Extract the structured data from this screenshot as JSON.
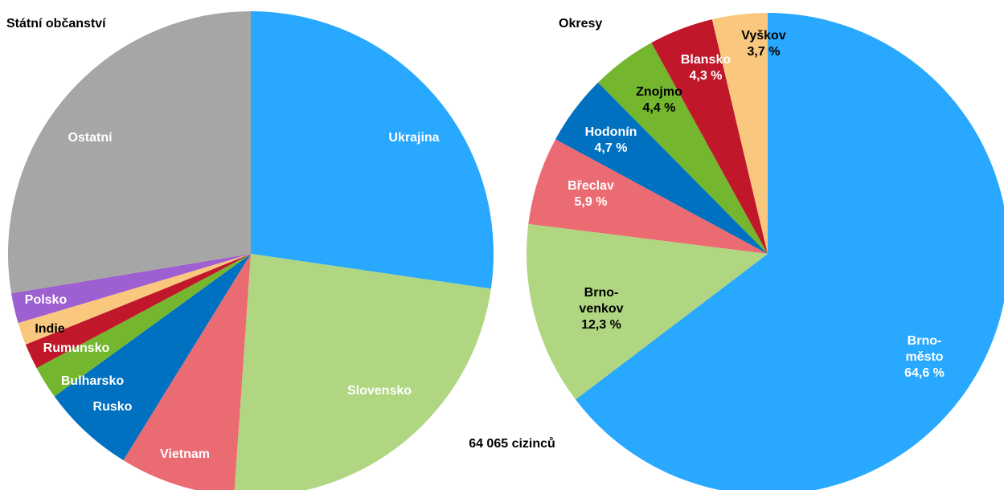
{
  "chart_data": [
    {
      "type": "pie",
      "title": "Státní občanství",
      "categories": [
        "Ukrajina",
        "Slovensko",
        "Vietnam",
        "Rusko",
        "Bulharsko",
        "Rumunsko",
        "Indie",
        "Polsko",
        "Ostatní"
      ],
      "values": [
        27.3,
        23.8,
        7.7,
        6.2,
        2.2,
        1.7,
        1.5,
        2.0,
        27.6
      ],
      "colors": [
        "#29a8ff",
        "#b0d682",
        "#eb6b73",
        "#0070c0",
        "#74b72e",
        "#c0182a",
        "#f9c77d",
        "#9e5fd1",
        "#a6a6a6"
      ]
    },
    {
      "type": "pie",
      "title": "Okresy",
      "annotation": "64 065 cizinců",
      "categories": [
        "Brno-město",
        "Brno-venkov",
        "Břeclav",
        "Hodonín",
        "Znojmo",
        "Blansko",
        "Vyškov"
      ],
      "values": [
        64.6,
        12.3,
        5.9,
        4.7,
        4.4,
        4.3,
        3.7
      ],
      "value_labels": [
        "64,6 %",
        "12,3 %",
        "5,9 %",
        "4,7 %",
        "4,4 %",
        "4,3 %",
        "3,7 %"
      ],
      "colors": [
        "#29a8ff",
        "#b0d682",
        "#eb6b73",
        "#0070c0",
        "#74b72e",
        "#c0182a",
        "#f9c77d"
      ]
    }
  ]
}
